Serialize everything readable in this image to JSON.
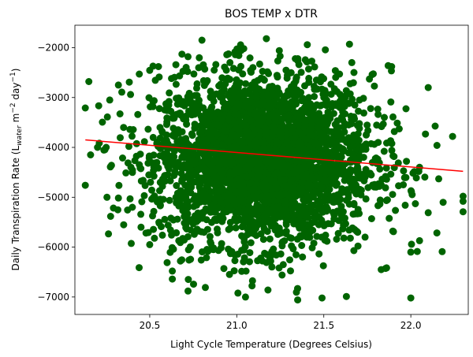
{
  "chart_data": {
    "type": "scatter",
    "title": "BOS TEMP x DTR",
    "xlabel": "Light Cycle Temperature (Degrees Celsius)",
    "ylabel_main": "Daily Transpiration Rate (L",
    "ylabel_sub": "water",
    "ylabel_mid": " m",
    "ylabel_sup1": "−2",
    "ylabel_day": " day",
    "ylabel_sup2": "−1",
    "ylabel_end": ")",
    "xlim": [
      20.07,
      22.33
    ],
    "ylim": [
      -7350,
      -1550
    ],
    "x_ticks": [
      20.5,
      21.0,
      21.5,
      22.0
    ],
    "x_tick_labels": [
      "20.5",
      "21.0",
      "21.5",
      "22.0"
    ],
    "y_ticks": [
      -7000,
      -6000,
      -5000,
      -4000,
      -3000,
      -2000
    ],
    "y_tick_labels": [
      "−7000",
      "−6000",
      "−5000",
      "−4000",
      "−3000",
      "−2000"
    ],
    "point_color": "#006400",
    "line_color": "#ff0000",
    "grid": false,
    "legend": "none",
    "cloud_center": {
      "x": 21.15,
      "y": -4250
    },
    "cloud_spread": {
      "x": 0.33,
      "y": 850
    },
    "regression": {
      "x": [
        20.13,
        22.3
      ],
      "y": [
        -3850,
        -4480
      ]
    },
    "points": [
      {
        "x": 20.13,
        "y": -3210
      },
      {
        "x": 20.15,
        "y": -2680
      },
      {
        "x": 20.13,
        "y": -4760
      },
      {
        "x": 20.16,
        "y": -4150
      },
      {
        "x": 20.32,
        "y": -2750
      },
      {
        "x": 20.27,
        "y": -3050
      },
      {
        "x": 20.25,
        "y": -4000
      },
      {
        "x": 20.28,
        "y": -4360
      },
      {
        "x": 20.44,
        "y": -2530
      },
      {
        "x": 20.55,
        "y": -2380
      },
      {
        "x": 20.6,
        "y": -6310
      },
      {
        "x": 20.63,
        "y": -6640
      },
      {
        "x": 20.63,
        "y": -6480
      },
      {
        "x": 20.72,
        "y": -6880
      },
      {
        "x": 20.8,
        "y": -1850
      },
      {
        "x": 21.17,
        "y": -1820
      },
      {
        "x": 20.72,
        "y": -2180
      },
      {
        "x": 21.05,
        "y": -7000
      },
      {
        "x": 21.35,
        "y": -7060
      },
      {
        "x": 21.49,
        "y": -7020
      },
      {
        "x": 21.63,
        "y": -6990
      },
      {
        "x": 21.83,
        "y": -6450
      },
      {
        "x": 21.87,
        "y": -2360
      },
      {
        "x": 21.89,
        "y": -2380
      },
      {
        "x": 22.0,
        "y": -7020
      },
      {
        "x": 22.0,
        "y": -6100
      },
      {
        "x": 22.1,
        "y": -2800
      },
      {
        "x": 22.1,
        "y": -5310
      },
      {
        "x": 22.15,
        "y": -3960
      },
      {
        "x": 22.16,
        "y": -4630
      },
      {
        "x": 22.18,
        "y": -6090
      },
      {
        "x": 22.24,
        "y": -3780
      },
      {
        "x": 22.3,
        "y": -4980
      },
      {
        "x": 22.3,
        "y": -5080
      },
      {
        "x": 22.3,
        "y": -5290
      },
      {
        "x": 22.05,
        "y": -4400
      },
      {
        "x": 22.05,
        "y": -5870
      },
      {
        "x": 20.2,
        "y": -4000
      },
      {
        "x": 20.35,
        "y": -3600
      },
      {
        "x": 20.4,
        "y": -5200
      },
      {
        "x": 20.45,
        "y": -5600
      },
      {
        "x": 20.5,
        "y": -5950
      }
    ]
  }
}
